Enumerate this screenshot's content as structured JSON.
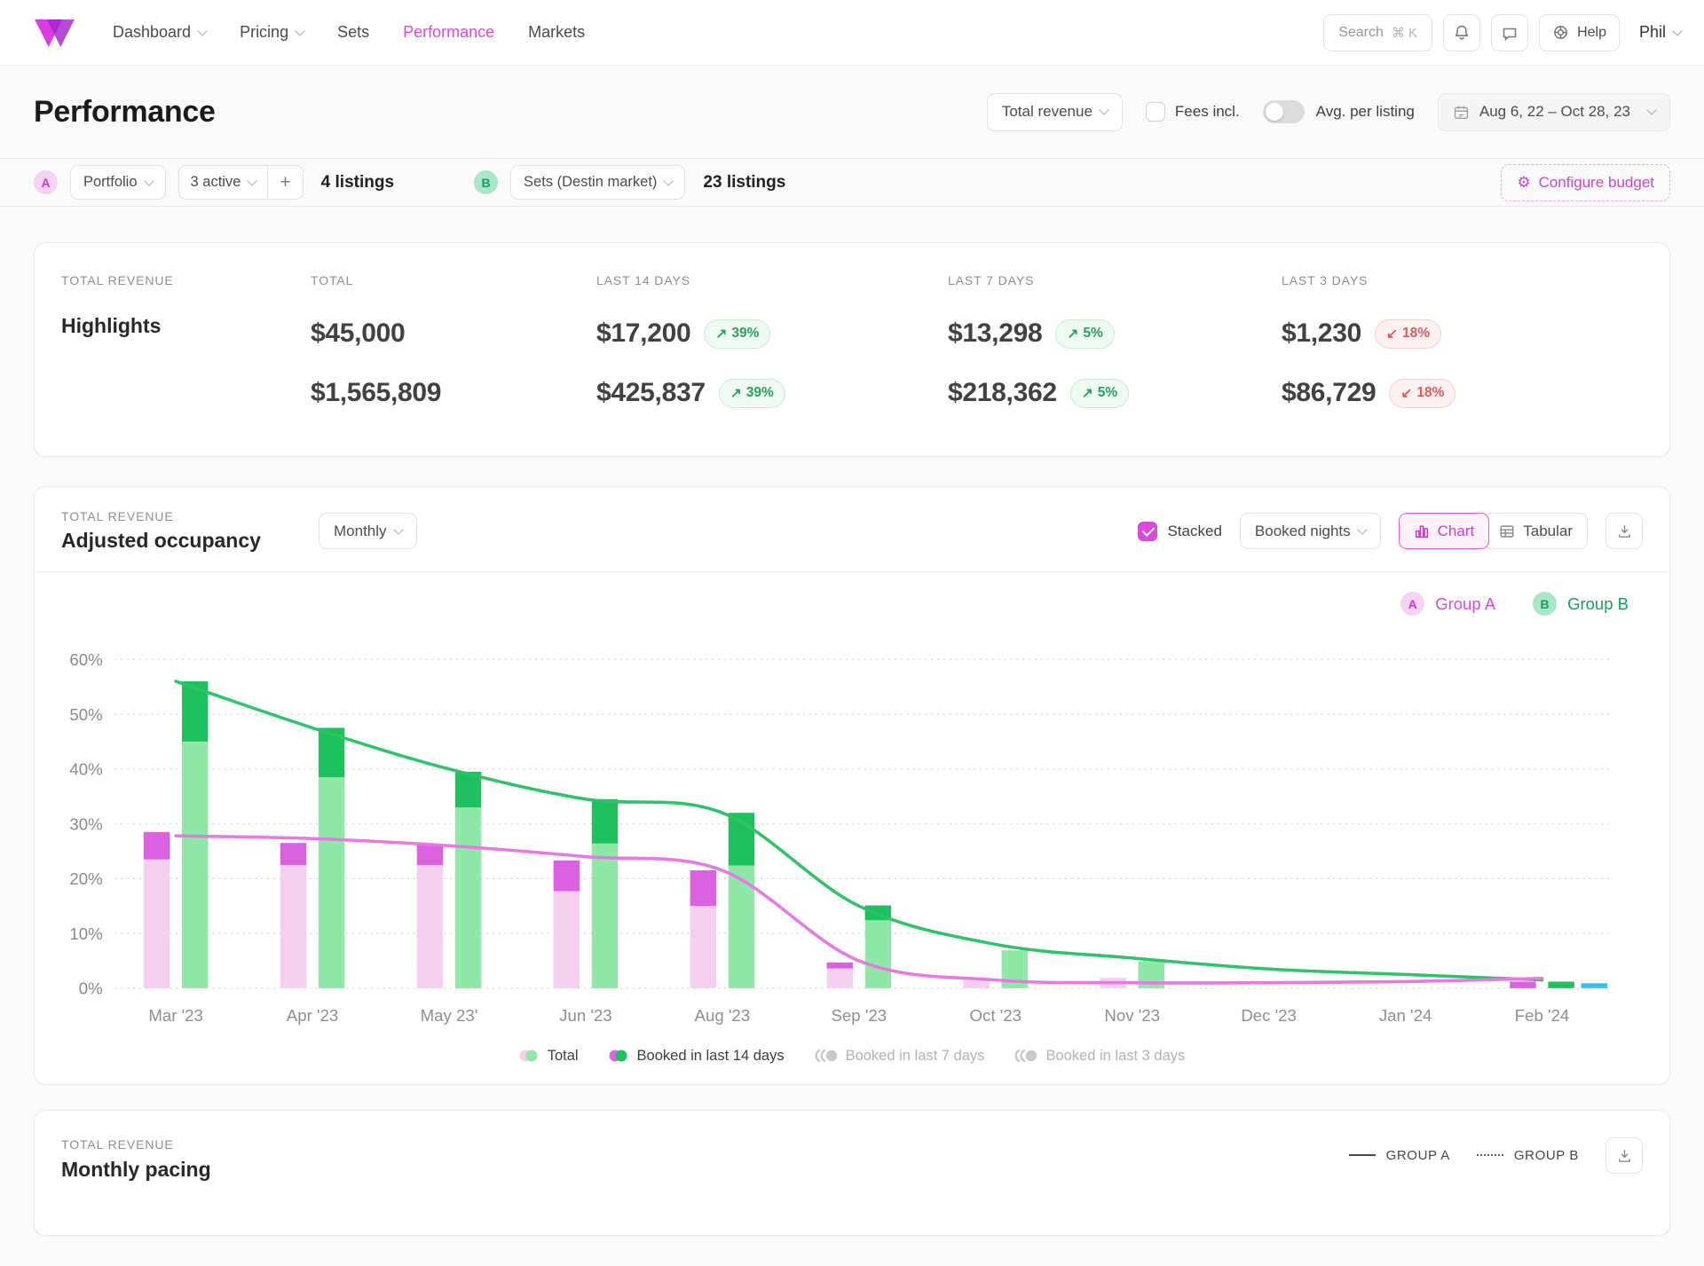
{
  "colors": {
    "accent": "#d94add",
    "group_a": "#d94add",
    "group_b": "#1ea463",
    "bar_a_light": "#f4cfef",
    "bar_a_dark": "#da62e0",
    "bar_b_light": "#8fe8a8",
    "bar_b_dark": "#1fc05e",
    "bar_extra_blue": "#3cbdee",
    "trend_line_a": "#e878e2",
    "trend_line_b": "#2dc468",
    "badge_up": "#27a35f",
    "badge_down": "#e05b5b"
  },
  "nav": {
    "items": [
      {
        "label": "Dashboard"
      },
      {
        "label": "Pricing"
      },
      {
        "label": "Sets"
      },
      {
        "label": "Performance"
      },
      {
        "label": "Markets"
      }
    ],
    "search_label": "Search",
    "search_shortcut": "⌘ K",
    "help_label": "Help",
    "user_name": "Phil"
  },
  "header": {
    "title": "Performance",
    "metric_dropdown": "Total revenue",
    "fees_label": "Fees incl.",
    "avg_label": "Avg. per listing",
    "date_range": "Aug 6, 22 – Oct 28, 23"
  },
  "filters": {
    "badge_a": "A",
    "portfolio_dropdown": "Portfolio",
    "active_dropdown": "3 active",
    "add_label": "+",
    "listings_a": "4 listings",
    "badge_b": "B",
    "sets_dropdown": "Sets (Destin market)",
    "listings_b": "23 listings",
    "configure_budget": "Configure budget"
  },
  "highlights": {
    "eyebrow": "TOTAL REVENUE",
    "title": "Highlights",
    "columns": [
      {
        "label": "TOTAL",
        "rows": [
          {
            "value": "$45,000"
          },
          {
            "value": "$1,565,809"
          }
        ]
      },
      {
        "label": "LAST 14 DAYS",
        "rows": [
          {
            "value": "$17,200",
            "badge": "39%",
            "arrow": "↗",
            "dir": "up"
          },
          {
            "value": "$425,837",
            "badge": "39%",
            "arrow": "↗",
            "dir": "up"
          }
        ]
      },
      {
        "label": "LAST 7 DAYS",
        "rows": [
          {
            "value": "$13,298",
            "badge": "5%",
            "arrow": "↗",
            "dir": "up"
          },
          {
            "value": "$218,362",
            "badge": "5%",
            "arrow": "↗",
            "dir": "up"
          }
        ]
      },
      {
        "label": "LAST 3 DAYS",
        "rows": [
          {
            "value": "$1,230",
            "badge": "18%",
            "arrow": "↙",
            "dir": "down"
          },
          {
            "value": "$86,729",
            "badge": "18%",
            "arrow": "↙",
            "dir": "down"
          }
        ]
      }
    ]
  },
  "occupancy": {
    "eyebrow": "TOTAL REVENUE",
    "title": "Adjusted occupancy",
    "interval_dropdown": "Monthly",
    "stacked_label": "Stacked",
    "metric_dropdown": "Booked nights",
    "view_chart": "Chart",
    "view_tabular": "Tabular",
    "legend": {
      "badge_a": "A",
      "group_a": "Group A",
      "badge_b": "B",
      "group_b": "Group B"
    },
    "series_legend": [
      {
        "label": "Total",
        "state": "active"
      },
      {
        "label": "Booked in last 14 days",
        "state": "active"
      },
      {
        "label": "Booked in last 7 days",
        "state": "inactive"
      },
      {
        "label": "Booked in last 3 days",
        "state": "inactive"
      }
    ]
  },
  "pacing": {
    "eyebrow": "TOTAL REVENUE",
    "title": "Monthly pacing",
    "legend_a": "GROUP A",
    "legend_b": "GROUP B"
  },
  "chart_data": {
    "type": "bar",
    "stacked": true,
    "title": "Adjusted occupancy",
    "unit": "%",
    "ylim": [
      0,
      60
    ],
    "yticks": [
      0,
      10,
      20,
      30,
      40,
      50,
      60
    ],
    "grid": "dotted-horizontal",
    "legend_position": "bottom",
    "categories": [
      "Mar '23",
      "Apr '23",
      "May 23'",
      "Jun '23",
      "Aug '23",
      "Sep '23",
      "Oct '23",
      "Nov '23",
      "Dec '23",
      "Jan '24",
      "Feb '24"
    ],
    "series": [
      {
        "name": "Group A – Total",
        "type": "bar",
        "stack": "A",
        "color": "#f4cfef",
        "values": [
          23.5,
          22.5,
          22.5,
          17.7,
          15,
          3.6,
          1.6,
          1.9,
          0,
          0,
          0
        ]
      },
      {
        "name": "Group A – Booked in last 14 days",
        "type": "bar",
        "stack": "A",
        "color": "#da62e0",
        "values": [
          5,
          4,
          3.7,
          5.6,
          6.5,
          1.1,
          0,
          0,
          0,
          0,
          1.2
        ]
      },
      {
        "name": "Group B – Total",
        "type": "bar",
        "stack": "B",
        "color": "#8fe8a8",
        "values": [
          45,
          38.5,
          33,
          26.4,
          22.4,
          12.4,
          6.9,
          4.9,
          0,
          0,
          0
        ]
      },
      {
        "name": "Group B – Booked in last 14 days",
        "type": "bar",
        "stack": "B",
        "color": "#1fc05e",
        "values": [
          11,
          9,
          6.5,
          8.1,
          9.6,
          2.7,
          0,
          0,
          0,
          0,
          1.2
        ]
      },
      {
        "name": "Unlabeled blue bar",
        "type": "bar",
        "stack": "C",
        "color": "#3cbdee",
        "values": [
          0,
          0,
          0,
          0,
          0,
          0,
          0,
          0,
          0,
          0,
          0.9
        ]
      },
      {
        "name": "Group B trend",
        "type": "line",
        "color": "#2dc468",
        "values": [
          56,
          47.5,
          40,
          34.5,
          32,
          15,
          8,
          5.5,
          3.5,
          2.5,
          1.5
        ]
      },
      {
        "name": "Group A trend",
        "type": "line",
        "color": "#e878e2",
        "values": [
          27.8,
          27.3,
          26,
          24,
          21.5,
          5,
          1.5,
          1,
          1,
          1.2,
          1.8
        ]
      }
    ]
  }
}
